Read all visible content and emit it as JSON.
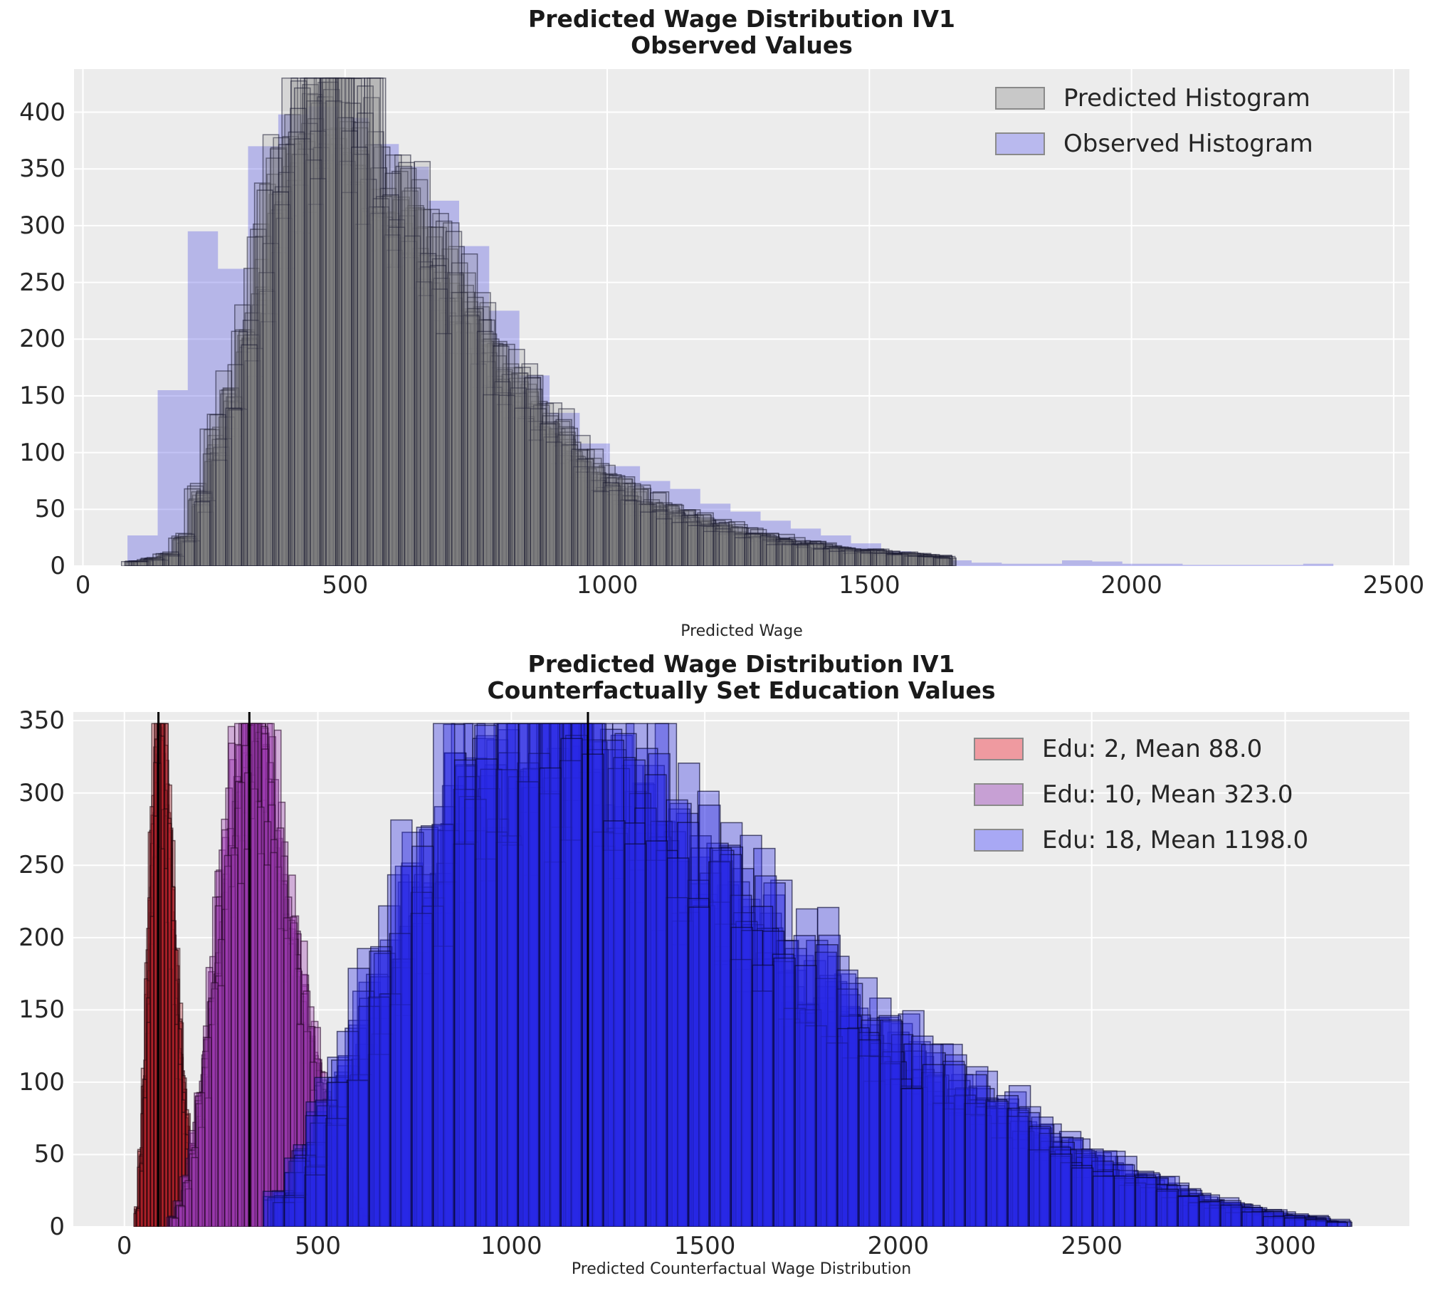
{
  "figure": {
    "background": "#ffffff",
    "axes_background": "#ececec",
    "grid_color": "#ffffff",
    "tick_color": "#262626",
    "title_color": "#1a1a1a"
  },
  "chart_data": [
    {
      "type": "bar",
      "subtype": "overlaid-histograms",
      "title": "Predicted Wage Distribution IV1\nObserved Values",
      "xlabel": "Predicted Wage",
      "ylabel": "",
      "xlim": [
        -17,
        2530
      ],
      "ylim": [
        0,
        438
      ],
      "xticks": [
        0,
        500,
        1000,
        1500,
        2000,
        2500
      ],
      "yticks": [
        0,
        50,
        100,
        150,
        200,
        250,
        300,
        350,
        400
      ],
      "grid": true,
      "legend_position": "upper right",
      "legend": [
        {
          "label": "Predicted Histogram",
          "swatch": "#c8c8c8"
        },
        {
          "label": "Observed Histogram",
          "swatch": "#b9b9ee"
        }
      ],
      "series": [
        {
          "name": "Observed Histogram",
          "bin_start": 85,
          "bin_width": 57.5,
          "heights": [
            27,
            155,
            295,
            262,
            370,
            398,
            405,
            395,
            372,
            352,
            322,
            282,
            225,
            168,
            135,
            108,
            88,
            75,
            68,
            55,
            48,
            40,
            33,
            27,
            20,
            13,
            8,
            5,
            3,
            2,
            2,
            5,
            4,
            2,
            2,
            1,
            1,
            1,
            1,
            2
          ],
          "fill": "#5050e1",
          "fill_alpha": 0.34,
          "edge": null,
          "draws": 1,
          "seed": 3
        },
        {
          "name": "Predicted Histogram",
          "bin_start": 88,
          "bin_width": 30,
          "heights": [
            4,
            6,
            10,
            25,
            60,
            105,
            150,
            210,
            270,
            330,
            370,
            392,
            400,
            390,
            375,
            355,
            335,
            312,
            288,
            264,
            240,
            218,
            197,
            177,
            158,
            141,
            125,
            110,
            97,
            85,
            75,
            66,
            58,
            52,
            47,
            43,
            39,
            35,
            31,
            28,
            25,
            22,
            20,
            18,
            16,
            14,
            13,
            12,
            11,
            10,
            9,
            8
          ],
          "fill": "#828282",
          "fill_alpha": 0.2,
          "edge": "#16162e",
          "edge_alpha": 0.55,
          "edge_width": 1.5,
          "draws": 20,
          "jitter": 0.16,
          "seed": 11
        }
      ]
    },
    {
      "type": "bar",
      "subtype": "overlaid-histograms",
      "title": "Predicted Wage Distribution IV1\nCounterfactually Set Education Values",
      "xlabel": "Predicted Counterfactual Wage Distribution",
      "ylabel": "",
      "xlim": [
        -132,
        3321
      ],
      "ylim": [
        0,
        356
      ],
      "xticks": [
        0,
        500,
        1000,
        1500,
        2000,
        2500,
        3000
      ],
      "yticks": [
        0,
        50,
        100,
        150,
        200,
        250,
        300,
        350
      ],
      "grid": true,
      "legend_position": "upper right",
      "legend": [
        {
          "label": "Edu: 2, Mean 88.0",
          "swatch": "#ef9aa0"
        },
        {
          "label": "Edu: 10, Mean 323.0",
          "swatch": "#c7a0d4"
        },
        {
          "label": "Edu: 18, Mean 1198.0",
          "swatch": "#a8a8f4"
        }
      ],
      "series": [
        {
          "name": "Edu: 2, Mean 88.0",
          "edu": 2,
          "mean": 88.0,
          "bin_start": 30,
          "bin_width": 9,
          "heights": [
            12,
            45,
            100,
            170,
            245,
            305,
            338,
            330,
            300,
            258,
            212,
            168,
            128,
            95,
            68,
            48,
            33,
            22,
            14,
            9,
            5,
            3
          ],
          "fill": "#c82832",
          "fill_alpha": 0.33,
          "edge": "#20050a",
          "edge_alpha": 0.6,
          "edge_width": 1.5,
          "draws": 15,
          "jitter": 0.18,
          "seed": 21
        },
        {
          "name": "Edu: 10, Mean 323.0",
          "edu": 10,
          "mean": 323.0,
          "bin_start": 118,
          "bin_width": 17,
          "heights": [
            6,
            15,
            30,
            55,
            85,
            120,
            160,
            200,
            240,
            275,
            305,
            328,
            340,
            334,
            315,
            290,
            262,
            233,
            205,
            178,
            152,
            128,
            105,
            84,
            65,
            48,
            34,
            22,
            13,
            7
          ],
          "fill": "#a03cb4",
          "fill_alpha": 0.35,
          "edge": "#260626",
          "edge_alpha": 0.6,
          "edge_width": 1.5,
          "draws": 15,
          "jitter": 0.18,
          "seed": 33
        },
        {
          "name": "Edu: 18, Mean 1198.0",
          "edu": 18,
          "mean": 1198.0,
          "bin_start": 390,
          "bin_width": 55,
          "heights": [
            20,
            45,
            80,
            115,
            155,
            195,
            230,
            262,
            290,
            312,
            330,
            340,
            340,
            338,
            332,
            322,
            308,
            292,
            275,
            258,
            242,
            226,
            210,
            196,
            182,
            168,
            156,
            144,
            133,
            122,
            112,
            102,
            93,
            84,
            76,
            68,
            60,
            53,
            46,
            40,
            34,
            29,
            24,
            20,
            16,
            13,
            10,
            8,
            6,
            4
          ],
          "fill": "#2828e6",
          "fill_alpha": 0.35,
          "edge": "#06062e",
          "edge_alpha": 0.65,
          "edge_width": 1.5,
          "draws": 15,
          "jitter": 0.2,
          "seed": 55
        }
      ],
      "mean_line_color": "#000000"
    }
  ]
}
